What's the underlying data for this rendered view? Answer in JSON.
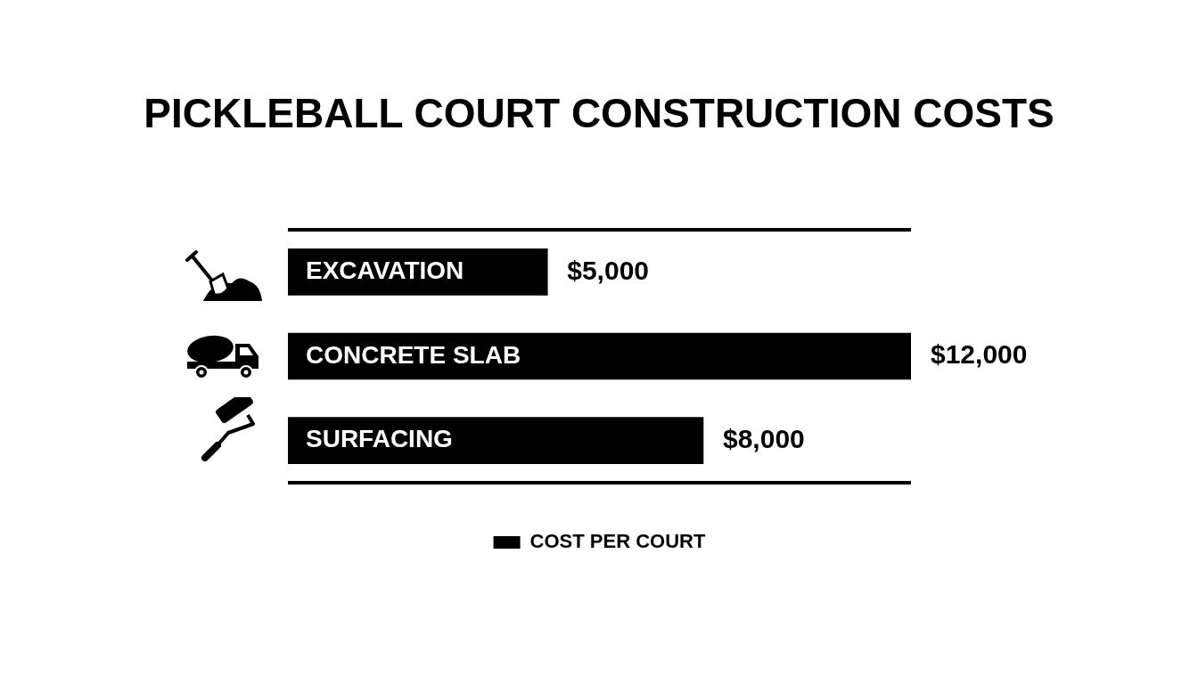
{
  "chart_data": {
    "type": "bar",
    "orientation": "horizontal",
    "title": "PICKLEBALL COURT CONSTRUCTION COSTS",
    "categories": [
      "EXCAVATION",
      "CONCRETE SLAB",
      "SURFACING"
    ],
    "series": [
      {
        "name": "COST PER COURT",
        "color": "#000000",
        "values": [
          5000,
          12000,
          8000
        ],
        "value_labels": [
          "$5,000",
          "$12,000",
          "$8,000"
        ]
      }
    ],
    "legend": "bottom",
    "grid": false,
    "tick_labels": "y"
  }
}
